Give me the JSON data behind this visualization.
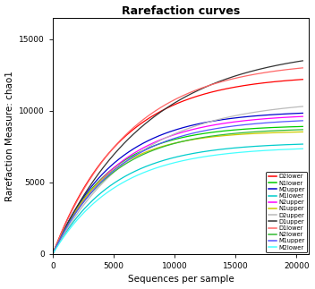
{
  "title": "Rarefaction curves",
  "xlabel": "Sequences per sample",
  "ylabel": "Rarefaction Measure: chao1",
  "xlim": [
    0,
    21000
  ],
  "ylim": [
    0,
    16500
  ],
  "xticks": [
    0,
    5000,
    10000,
    15000,
    20000
  ],
  "yticks": [
    0,
    5000,
    10000,
    15000
  ],
  "x_max": 20500,
  "curves": [
    {
      "name": "D2lower",
      "color": "#FF0000",
      "a": 12500,
      "b": 0.00018
    },
    {
      "name": "N1lower",
      "color": "#00CC00",
      "a": 9000,
      "b": 0.00022
    },
    {
      "name": "M2upper",
      "color": "#0000CD",
      "a": 10000,
      "b": 0.0002
    },
    {
      "name": "M1lower",
      "color": "#00CCCC",
      "a": 7800,
      "b": 0.0002
    },
    {
      "name": "N2upper",
      "color": "#FF00FF",
      "a": 9800,
      "b": 0.00019
    },
    {
      "name": "N1upper",
      "color": "#CCCC00",
      "a": 8600,
      "b": 0.00023
    },
    {
      "name": "D2upper",
      "color": "#BBBBBB",
      "a": 10800,
      "b": 0.00015
    },
    {
      "name": "D1upper",
      "color": "#333333",
      "a": 14500,
      "b": 0.00013
    },
    {
      "name": "D1lower",
      "color": "#FF6666",
      "a": 13500,
      "b": 0.00016
    },
    {
      "name": "N2lower",
      "color": "#33BB33",
      "a": 8800,
      "b": 0.00021
    },
    {
      "name": "M1upper",
      "color": "#5555FF",
      "a": 9500,
      "b": 0.00019
    },
    {
      "name": "M2lower",
      "color": "#44FFFF",
      "a": 7500,
      "b": 0.00019
    }
  ]
}
